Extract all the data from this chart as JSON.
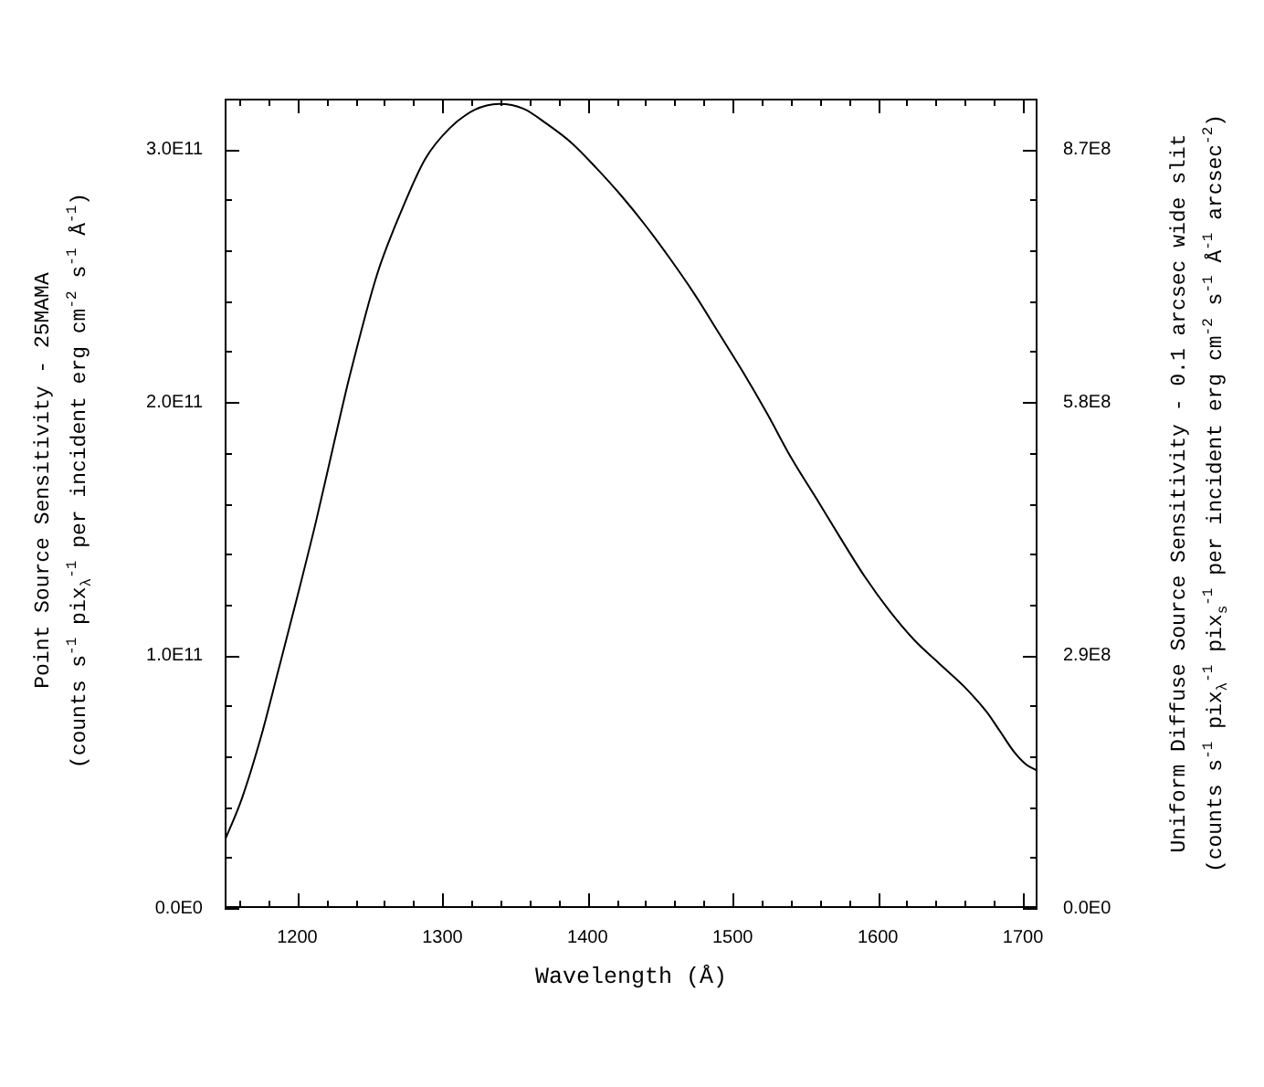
{
  "chart_data": {
    "type": "line",
    "xlabel": "Wavelength (Å)",
    "ylabel": "Point Source Sensitivity - 25MAMA\n(counts s$^{-1}$ pix$_{λ}$$^{-1}$ per incident erg cm$^{-2}$ s$^{-1}$ Å$^{-1}$)",
    "y2label": "Uniform Diffuse Source Sensitivity - 0.1 arcsec wide slit\n(counts s$^{-1}$ pix$_{λ}$$^{-1}$ pix$_{s}$$^{-1}$ per incident erg cm$^{-2}$ s$^{-1}$ Å$^{-1}$ arcsec$^{-2}$)",
    "x": [
      1150,
      1162,
      1175,
      1187,
      1200,
      1213,
      1225,
      1236,
      1255,
      1271,
      1288,
      1305,
      1322,
      1339,
      1356,
      1372,
      1389,
      1406,
      1423,
      1440,
      1457,
      1473,
      1490,
      1507,
      1524,
      1540,
      1557,
      1574,
      1591,
      1608,
      1625,
      1642,
      1659,
      1675,
      1684,
      1694,
      1702,
      1709
    ],
    "values": [
      26500000000.0,
      43500000000.0,
      67600000000.0,
      94000000000.0,
      123000000000.0,
      153000000000.0,
      183000000000.0,
      210000000000.0,
      250500000000.0,
      274600000000.0,
      296000000000.0,
      308300000000.0,
      315500000000.0,
      317900000000.0,
      316000000000.0,
      310000000000.0,
      302500000000.0,
      292600000000.0,
      281800000000.0,
      269800000000.0,
      256600000000.0,
      243300000000.0,
      227700000000.0,
      212000000000.0,
      195200000000.0,
      178300000000.0,
      162500000000.0,
      146500000000.0,
      131000000000.0,
      117500000000.0,
      106000000000.0,
      96800000000.0,
      87800000000.0,
      77500000000.0,
      70000000000.0,
      61600000000.0,
      56800000000.0,
      54500000000.0
    ],
    "color": "#000000",
    "xlim": [
      1150,
      1710
    ],
    "xticks": [
      {
        "value": 1160,
        "label": null
      },
      {
        "value": 1180,
        "label": null
      },
      1200,
      {
        "value": 1220,
        "label": null
      },
      {
        "value": 1240,
        "label": null
      },
      {
        "value": 1260,
        "label": null
      },
      {
        "value": 1280,
        "label": null
      },
      1300,
      {
        "value": 1320,
        "label": null
      },
      {
        "value": 1340,
        "label": null
      },
      {
        "value": 1360,
        "label": null
      },
      {
        "value": 1380,
        "label": null
      },
      1400,
      {
        "value": 1420,
        "label": null
      },
      {
        "value": 1440,
        "label": null
      },
      {
        "value": 1460,
        "label": null
      },
      {
        "value": 1480,
        "label": null
      },
      1500,
      {
        "value": 1520,
        "label": null
      },
      {
        "value": 1540,
        "label": null
      },
      {
        "value": 1560,
        "label": null
      },
      {
        "value": 1580,
        "label": null
      },
      1600,
      {
        "value": 1620,
        "label": null
      },
      {
        "value": 1640,
        "label": null
      },
      {
        "value": 1660,
        "label": null
      },
      {
        "value": 1680,
        "label": null
      },
      1700
    ],
    "ylim": [
      0,
      320000000000.0
    ],
    "yticks": [
      {
        "value": 0,
        "label": "0.0E0"
      },
      {
        "value": 20000000000.0,
        "label": null
      },
      {
        "value": 40000000000.0,
        "label": null
      },
      {
        "value": 60000000000.0,
        "label": null
      },
      {
        "value": 80000000000.0,
        "label": null
      },
      {
        "value": 100000000000.0,
        "label": "1.0E11"
      },
      {
        "value": 120000000000.0,
        "label": null
      },
      {
        "value": 140000000000.0,
        "label": null
      },
      {
        "value": 160000000000.0,
        "label": null
      },
      {
        "value": 180000000000.0,
        "label": null
      },
      {
        "value": 200000000000.0,
        "label": "2.0E11"
      },
      {
        "value": 220000000000.0,
        "label": null
      },
      {
        "value": 240000000000.0,
        "label": null
      },
      {
        "value": 260000000000.0,
        "label": null
      },
      {
        "value": 280000000000.0,
        "label": null
      },
      {
        "value": 300000000000.0,
        "label": "3.0E11"
      }
    ],
    "y2lim": [
      0,
      928000000.0
    ],
    "y2ticks": [
      {
        "value": 0,
        "label": "0.0E0"
      },
      {
        "value": 58000000.0,
        "label": null
      },
      {
        "value": 116000000.0,
        "label": null
      },
      {
        "value": 174000000.0,
        "label": null
      },
      {
        "value": 232000000.0,
        "label": null
      },
      {
        "value": 290000000.0,
        "label": "2.9E8"
      },
      {
        "value": 348000000.0,
        "label": null
      },
      {
        "value": 406000000.0,
        "label": null
      },
      {
        "value": 464000000.0,
        "label": null
      },
      {
        "value": 522000000.0,
        "label": null
      },
      {
        "value": 580000000.0,
        "label": "5.8E8"
      },
      {
        "value": 638000000.0,
        "label": null
      },
      {
        "value": 696000000.0,
        "label": null
      },
      {
        "value": 754000000.0,
        "label": null
      },
      {
        "value": 812000000.0,
        "label": null
      },
      {
        "value": 870000000.0,
        "label": "8.7E8"
      }
    ]
  }
}
